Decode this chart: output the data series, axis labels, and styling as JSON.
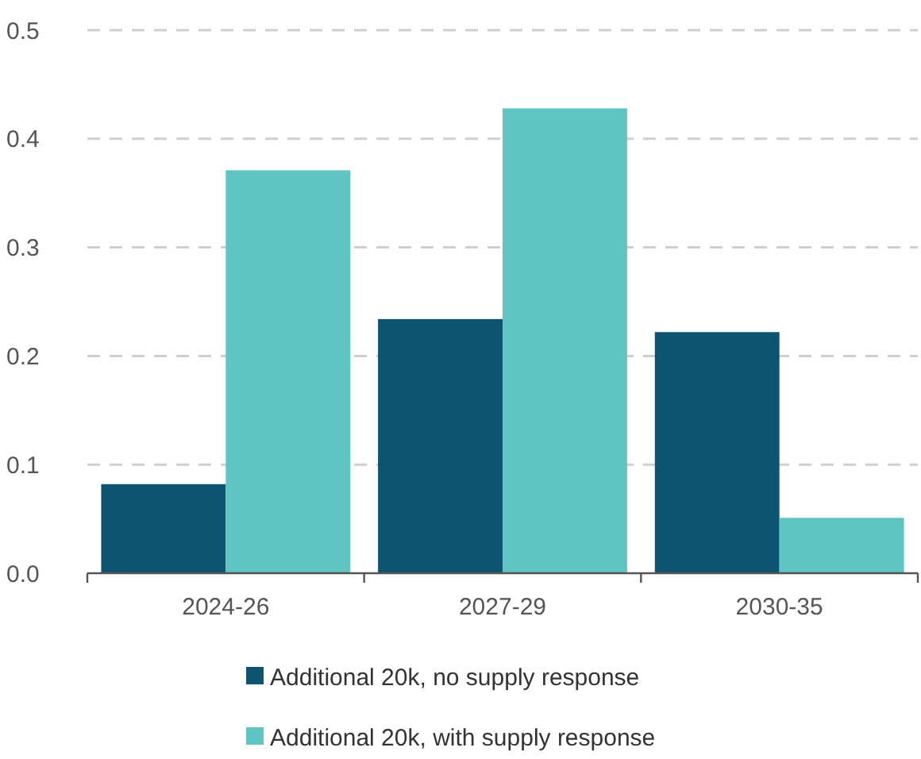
{
  "chart_data": {
    "type": "bar",
    "categories": [
      "2024-26",
      "2027-29",
      "2030-35"
    ],
    "series": [
      {
        "name": "Additional 20k, no supply response",
        "color": "#0d5470",
        "values": [
          0.082,
          0.234,
          0.222
        ]
      },
      {
        "name": "Additional 20k, with supply response",
        "color": "#5ec5c3",
        "values": [
          0.371,
          0.428,
          0.051
        ]
      }
    ],
    "ylim": [
      0,
      0.5
    ],
    "yticks": [
      {
        "value": 0,
        "label": "0.0"
      },
      0.1,
      0.2,
      0.3,
      0.4,
      0.5
    ],
    "grid": "y",
    "legend": "bottom"
  }
}
